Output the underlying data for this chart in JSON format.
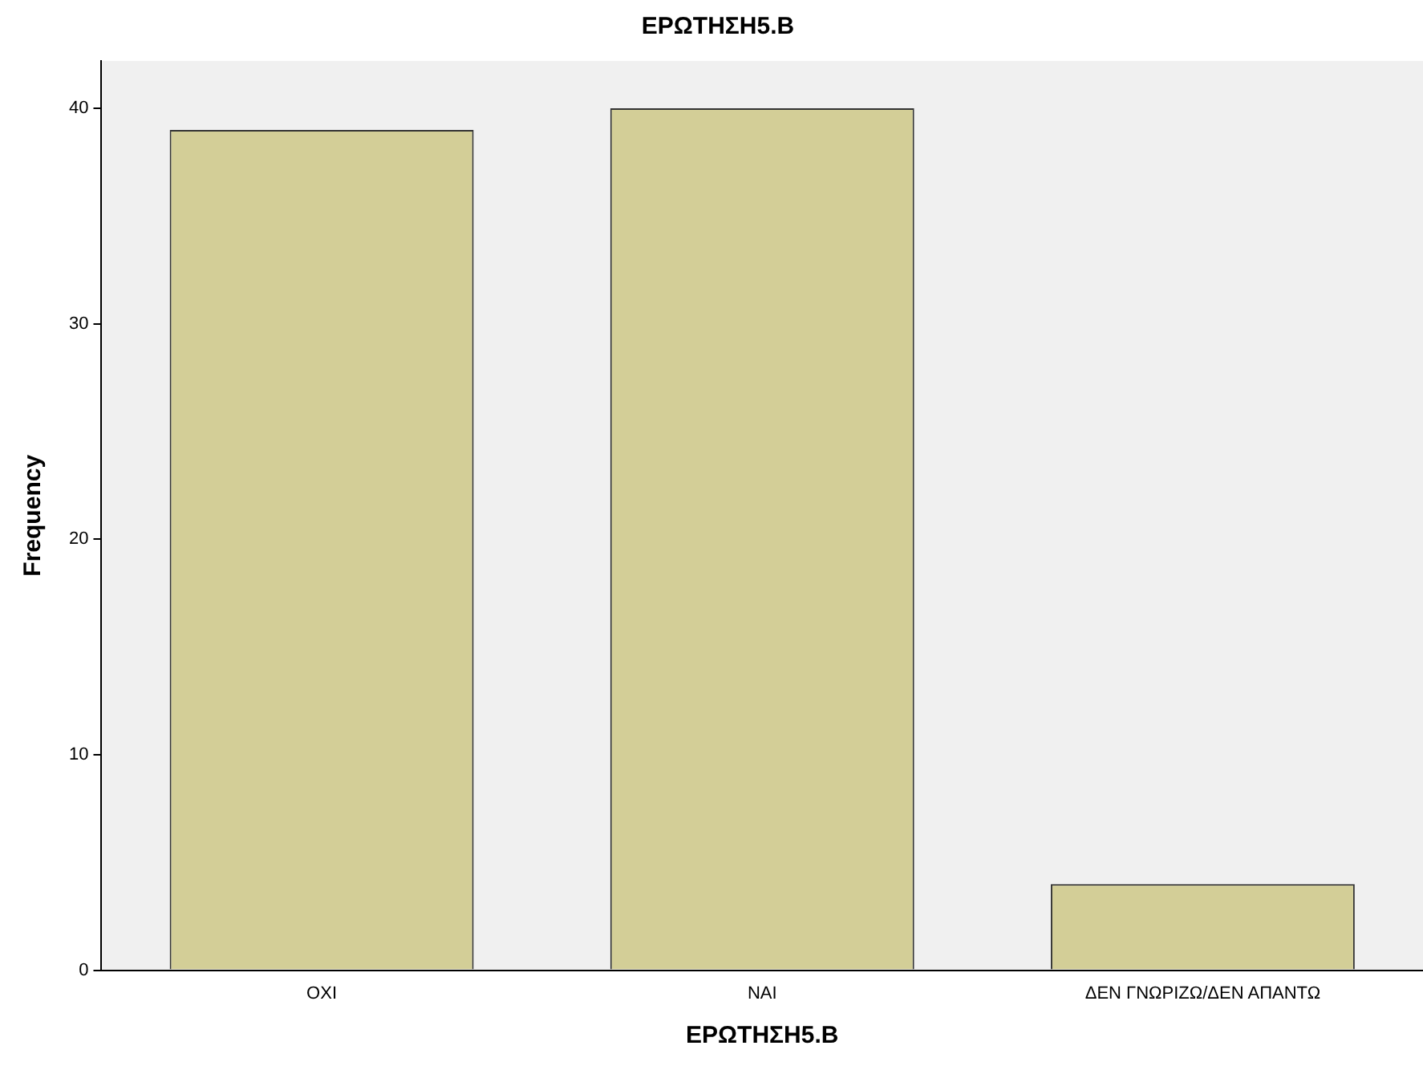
{
  "chart_data": {
    "type": "bar",
    "title": "ΕΡΩΤΗΣΗ5.Β",
    "xlabel": "ΕΡΩΤΗΣΗ5.Β",
    "ylabel": "Frequency",
    "categories": [
      "ΟΧΙ",
      "ΝΑΙ",
      "ΔΕΝ ΓΝΩΡΙΖΩ/ΔΕΝ ΑΠΑΝΤΩ"
    ],
    "values": [
      39,
      40,
      4
    ],
    "color": "#d3ce97",
    "ylim": [
      0,
      42.2
    ],
    "yticks": [
      0,
      10,
      20,
      30,
      40
    ],
    "grid": false,
    "legend": false
  }
}
